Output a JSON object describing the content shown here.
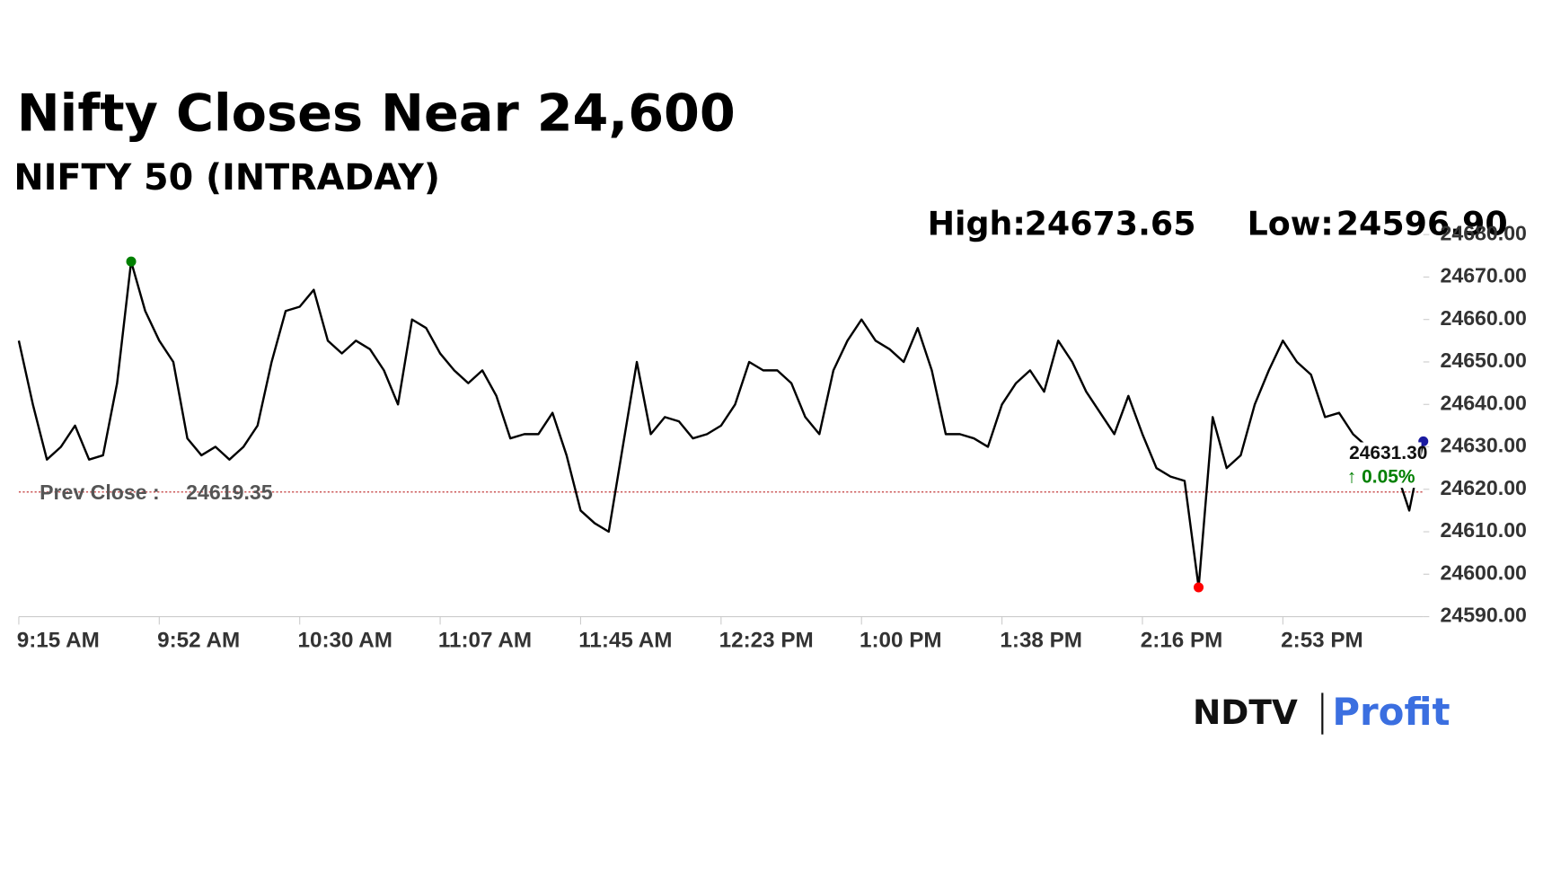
{
  "chart_data": {
    "type": "line",
    "title": "Nifty Closes Near 24,600",
    "subtitle": "NIFTY 50 (INTRADAY)",
    "high_label": "High:",
    "high": 24673.65,
    "low_label": "Low:",
    "low": 24596.9,
    "low_text": "24596.90",
    "prev_close_label": "Prev Close :",
    "prev_close": 24619.35,
    "last": 24631.3,
    "last_label": "24631.30",
    "change": "↑ 0.05%",
    "brand": [
      "NDTV",
      "Profit"
    ],
    "categories": [
      "9:15 AM",
      null,
      null,
      null,
      null,
      null,
      null,
      null,
      null,
      null,
      "9:52 AM",
      null,
      null,
      null,
      null,
      null,
      null,
      null,
      null,
      null,
      "10:30 AM",
      null,
      null,
      null,
      null,
      null,
      null,
      null,
      null,
      null,
      "11:07 AM",
      null,
      null,
      null,
      null,
      null,
      null,
      null,
      null,
      null,
      "11:45 AM",
      null,
      null,
      null,
      null,
      null,
      null,
      null,
      null,
      null,
      "12:23 PM",
      null,
      null,
      null,
      null,
      null,
      null,
      null,
      null,
      null,
      "1:00 PM",
      null,
      null,
      null,
      null,
      null,
      null,
      null,
      null,
      null,
      "1:38 PM",
      null,
      null,
      null,
      null,
      null,
      null,
      null,
      null,
      null,
      "2:16 PM",
      null,
      null,
      null,
      null,
      null,
      null,
      null,
      null,
      null,
      "2:53 PM",
      null,
      null,
      null,
      null,
      null,
      null,
      null,
      null,
      null,
      null
    ],
    "series": [
      {
        "name": "NIFTY 50",
        "color": "#000000",
        "values": [
          24655,
          24640,
          24627,
          24630,
          24635,
          24627,
          24628,
          24645,
          24673.65,
          24662,
          24655,
          24650,
          24632,
          24628,
          24630,
          24627,
          24630,
          24635,
          24650,
          24662,
          24663,
          24667,
          24655,
          24652,
          24655,
          24653,
          24648,
          24640,
          24660,
          24658,
          24652,
          24648,
          24645,
          24648,
          24642,
          24632,
          24633,
          24633,
          24638,
          24628,
          24615,
          24612,
          24610,
          24630,
          24650,
          24633,
          24637,
          24636,
          24632,
          24633,
          24635,
          24640,
          24650,
          24648,
          24648,
          24645,
          24637,
          24633,
          24648,
          24655,
          24660,
          24655,
          24653,
          24650,
          24658,
          24648,
          24633,
          24633,
          24632,
          24630,
          24640,
          24645,
          24648,
          24643,
          24655,
          24650,
          24643,
          24638,
          24633,
          24642,
          24633,
          24625,
          24623,
          24622,
          24596.9,
          24637,
          24625,
          24628,
          24640,
          24648,
          24655,
          24650,
          24647,
          24637,
          24638,
          24633,
          24630,
          24629,
          24625,
          24615,
          24631.3
        ]
      }
    ],
    "ylim": [
      24590,
      24680
    ],
    "yticks": [
      {
        "value": 24590,
        "label": "24590.00"
      },
      {
        "value": 24600,
        "label": "24600.00"
      },
      {
        "value": 24610,
        "label": "24610.00"
      },
      {
        "value": 24620,
        "label": "24620.00"
      },
      {
        "value": 24630,
        "label": "24630.00"
      },
      {
        "value": 24640,
        "label": "24640.00"
      },
      {
        "value": 24650,
        "label": "24650.00"
      },
      {
        "value": 24660,
        "label": "24660.00"
      },
      {
        "value": 24670,
        "label": "24670.00"
      },
      {
        "value": 24680,
        "label": "24680.00"
      }
    ]
  }
}
